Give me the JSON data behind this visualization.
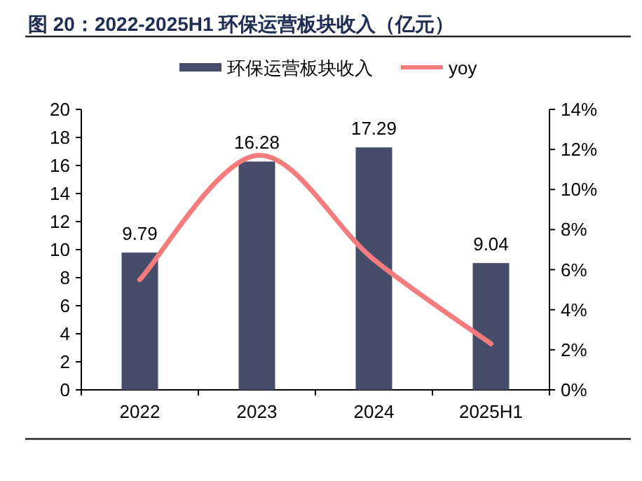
{
  "chart_data": {
    "type": "bar",
    "title": "图 20：2022-2025H1 环保运营板块收入（亿元）",
    "categories": [
      "2022",
      "2023",
      "2024",
      "2025H1"
    ],
    "series": [
      {
        "name": "环保运营板块收入",
        "color": "#454d6b",
        "values": [
          9.79,
          16.28,
          17.29,
          9.04
        ],
        "value_labels": [
          "9.79",
          "16.28",
          "17.29",
          "9.04"
        ]
      },
      {
        "name": "yoy",
        "type": "line",
        "axis": "y2",
        "color": "#f47c7c",
        "values": [
          5.5,
          11.7,
          6.5,
          2.3
        ]
      }
    ],
    "ylim": [
      0,
      20
    ],
    "yticks": [
      0,
      2,
      4,
      6,
      8,
      10,
      12,
      14,
      16,
      18,
      20
    ],
    "y2lim": [
      0,
      14
    ],
    "y2ticks": [
      {
        "value": 0,
        "label": "0%"
      },
      {
        "value": 2,
        "label": "2%"
      },
      {
        "value": 4,
        "label": "4%"
      },
      {
        "value": 6,
        "label": "6%"
      },
      {
        "value": 8,
        "label": "8%"
      },
      {
        "value": 10,
        "label": "10%"
      },
      {
        "value": 12,
        "label": "12%"
      },
      {
        "value": 14,
        "label": "14%"
      }
    ],
    "legend": "top"
  }
}
